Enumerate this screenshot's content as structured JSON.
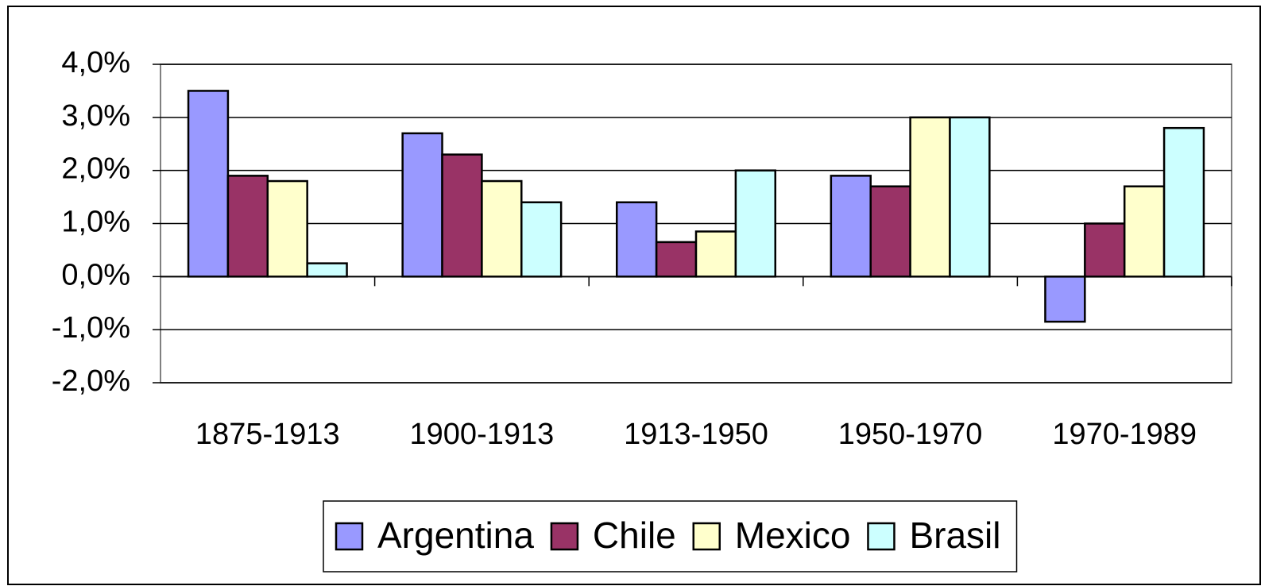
{
  "chart_data": {
    "type": "bar",
    "categories": [
      "1875-1913",
      "1900-1913",
      "1913-1950",
      "1950-1970",
      "1970-1989"
    ],
    "series": [
      {
        "name": "Argentina",
        "color": "#9999ff",
        "values": [
          3.5,
          2.7,
          1.4,
          1.9,
          -0.85
        ]
      },
      {
        "name": "Chile",
        "color": "#993366",
        "values": [
          1.9,
          2.3,
          0.65,
          1.7,
          1.0
        ]
      },
      {
        "name": "Mexico",
        "color": "#ffffcc",
        "values": [
          1.8,
          1.8,
          0.85,
          3.0,
          1.7
        ]
      },
      {
        "name": "Brasil",
        "color": "#ccffff",
        "values": [
          0.25,
          1.4,
          2.0,
          3.0,
          2.8
        ]
      }
    ],
    "ylim": [
      -2,
      4
    ],
    "yticks": [
      {
        "value": -2,
        "label": "-2,0%"
      },
      {
        "value": -1,
        "label": "-1,0%"
      },
      {
        "value": 0,
        "label": "0,0%"
      },
      {
        "value": 1,
        "label": "1,0%"
      },
      {
        "value": 2,
        "label": "2,0%"
      },
      {
        "value": 3,
        "label": "3,0%"
      },
      {
        "value": 4,
        "label": "4,0%"
      }
    ],
    "grid": true,
    "legend": "bottom"
  }
}
